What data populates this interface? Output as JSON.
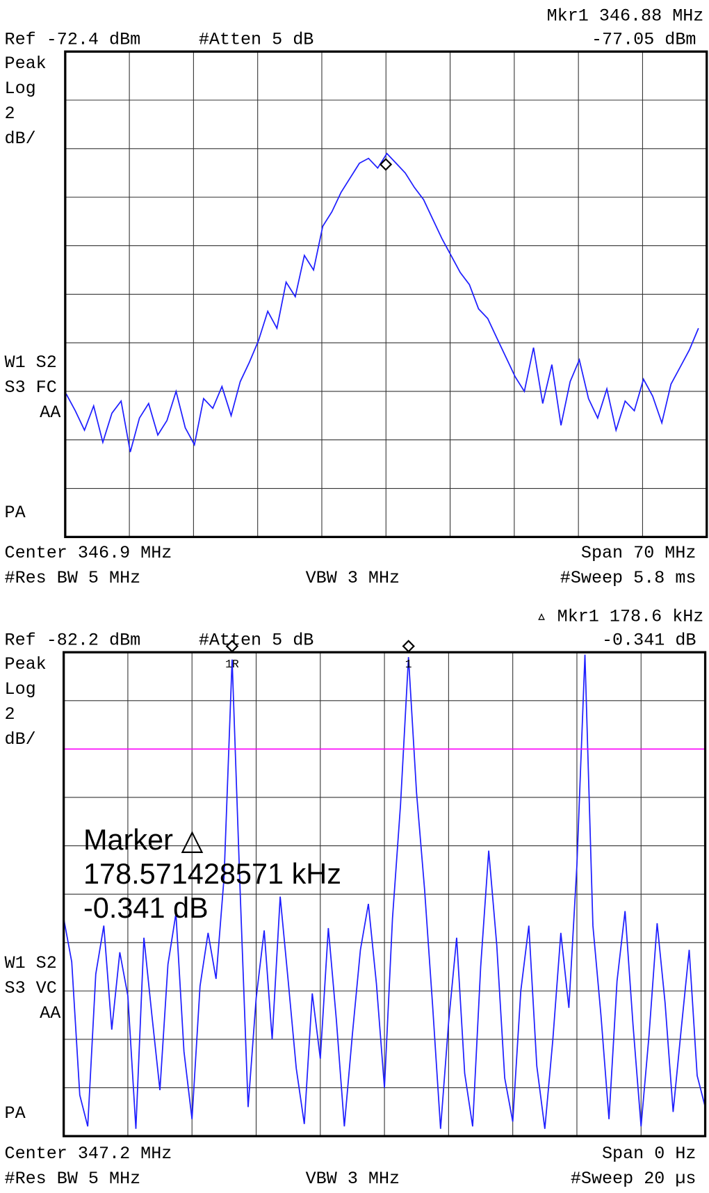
{
  "chart_data": [
    {
      "type": "line",
      "header": {
        "marker": "Mkr1  346.88 MHz",
        "ref": "Ref -72.4 dBm",
        "atten": "#Atten 5 dB",
        "marker_value": "-77.05 dBm"
      },
      "scale_labels": [
        "Peak",
        "Log",
        "2",
        "dB/"
      ],
      "status_labels": [
        "W1  S2",
        "S3  FC",
        "AA"
      ],
      "pa": "PA",
      "footer": {
        "center": "Center 346.9 MHz",
        "span": "Span 70 MHz",
        "rbw": "#Res BW 5 MHz",
        "vbw": "VBW 3 MHz",
        "sweep": "#Sweep 5.8 ms"
      },
      "x": [
        312,
        313,
        314,
        315,
        316,
        317,
        318,
        319,
        320,
        321,
        322,
        323,
        324,
        325,
        326,
        327,
        328,
        329,
        330,
        331,
        332,
        333,
        334,
        335,
        336,
        337,
        338,
        339,
        340,
        341,
        342,
        343,
        344,
        345,
        346,
        347,
        348,
        349,
        350,
        351,
        352,
        353,
        354,
        355,
        356,
        357,
        358,
        359,
        360,
        361,
        362,
        363,
        364,
        365,
        366,
        367,
        368,
        369,
        370,
        371,
        372,
        373,
        374,
        375,
        376,
        377,
        378,
        379,
        380,
        381
      ],
      "series": [
        {
          "color": "#1f1fff",
          "values": [
            -86.5,
            -87.2,
            -88.0,
            -87.0,
            -88.5,
            -87.3,
            -86.8,
            -88.9,
            -87.5,
            -86.9,
            -88.2,
            -87.6,
            -86.4,
            -87.9,
            -88.6,
            -86.7,
            -87.1,
            -86.2,
            -87.4,
            -86.0,
            -85.2,
            -84.3,
            -83.1,
            -83.8,
            -81.9,
            -82.5,
            -80.8,
            -81.4,
            -79.6,
            -79.0,
            -78.2,
            -77.6,
            -77.0,
            -76.8,
            -77.2,
            -76.6,
            -77.0,
            -77.4,
            -78.0,
            -78.5,
            -79.3,
            -80.1,
            -80.8,
            -81.5,
            -82.0,
            -83.0,
            -83.4,
            -84.2,
            -85.0,
            -85.8,
            -86.4,
            -84.6,
            -86.9,
            -85.3,
            -87.8,
            -86.0,
            -85.1,
            -86.7,
            -87.5,
            -86.3,
            -88.0,
            -86.8,
            -87.2,
            -85.9,
            -86.6,
            -87.7,
            -86.1,
            -85.4,
            -84.7,
            -83.8
          ]
        }
      ],
      "xlim": [
        311.9,
        381.9
      ],
      "ylim": [
        -92.4,
        -72.4
      ],
      "grid": true,
      "markers": [
        {
          "x": 346.88,
          "y": -77.05
        }
      ]
    },
    {
      "type": "line",
      "header": {
        "marker": "▵ Mkr1  178.6 kHz",
        "ref": "Ref -82.2 dBm",
        "atten": "#Atten 5 dB",
        "marker_value": "-0.341 dB"
      },
      "scale_labels": [
        "Peak",
        "Log",
        "2",
        "dB/"
      ],
      "status_labels": [
        "W1  S2",
        "S3  VC",
        "AA"
      ],
      "pa": "PA",
      "footer": {
        "center": "Center 347.2 MHz",
        "span": "Span 0 Hz",
        "rbw": "#Res BW 5 MHz",
        "vbw": "VBW 3 MHz",
        "sweep": "#Sweep 20 µs"
      },
      "readout": [
        "Marker △",
        "178.571428571 kHz",
        "-0.341 dB"
      ],
      "x": [
        0,
        0.25,
        0.5,
        0.75,
        1,
        1.25,
        1.5,
        1.75,
        2,
        2.25,
        2.5,
        2.75,
        3,
        3.25,
        3.5,
        3.75,
        4,
        4.25,
        4.5,
        4.75,
        5,
        5.25,
        5.5,
        5.75,
        6,
        6.25,
        6.5,
        6.75,
        7,
        7.25,
        7.5,
        7.75,
        8,
        8.25,
        8.5,
        8.75,
        9,
        9.25,
        9.5,
        9.75,
        10,
        10.25,
        10.5,
        10.75,
        11,
        11.25,
        11.5,
        11.75,
        12,
        12.25,
        12.5,
        12.75,
        13,
        13.25,
        13.5,
        13.75,
        14,
        14.25,
        14.5,
        14.75,
        15,
        15.25,
        15.5,
        15.75,
        16,
        16.25,
        16.5,
        16.75,
        17,
        17.25,
        17.5,
        17.75,
        18,
        18.25,
        18.5,
        18.75,
        19,
        19.25,
        19.5,
        19.75,
        20
      ],
      "series": [
        {
          "color": "#1f1fff",
          "values": [
            -93.2,
            -95.0,
            -100.5,
            -101.8,
            -95.5,
            -93.5,
            -97.8,
            -94.6,
            -96.4,
            -101.9,
            -94.0,
            -97.2,
            -100.3,
            -95.1,
            -93.0,
            -98.7,
            -101.5,
            -96.0,
            -93.8,
            -95.7,
            -91.5,
            -82.5,
            -92.0,
            -101.0,
            -96.5,
            -93.7,
            -98.2,
            -92.3,
            -95.8,
            -99.4,
            -101.7,
            -96.3,
            -99.0,
            -93.6,
            -97.4,
            -101.8,
            -98.0,
            -94.5,
            -92.6,
            -95.9,
            -100.2,
            -93.2,
            -88.5,
            -82.4,
            -88.0,
            -92.0,
            -96.8,
            -101.9,
            -97.5,
            -94.0,
            -99.6,
            -101.8,
            -95.2,
            -90.4,
            -94.3,
            -99.8,
            -101.6,
            -96.2,
            -93.5,
            -99.3,
            -101.9,
            -98.2,
            -93.8,
            -96.9,
            -91.0,
            -82.3,
            -93.5,
            -97.2,
            -101.5,
            -95.8,
            -92.9,
            -97.6,
            -101.8,
            -98.0,
            -93.4,
            -96.7,
            -101.2,
            -97.8,
            -94.5,
            -99.7,
            -101.0
          ]
        }
      ],
      "xlim": [
        0,
        20
      ],
      "ylim": [
        -102.2,
        -82.2
      ],
      "grid": true,
      "display_line": {
        "value": -86.2,
        "color": "#ff00ff"
      },
      "markers": [
        {
          "label": "1R",
          "x": 5.25
        },
        {
          "label": "1",
          "x": 10.75
        }
      ]
    }
  ]
}
